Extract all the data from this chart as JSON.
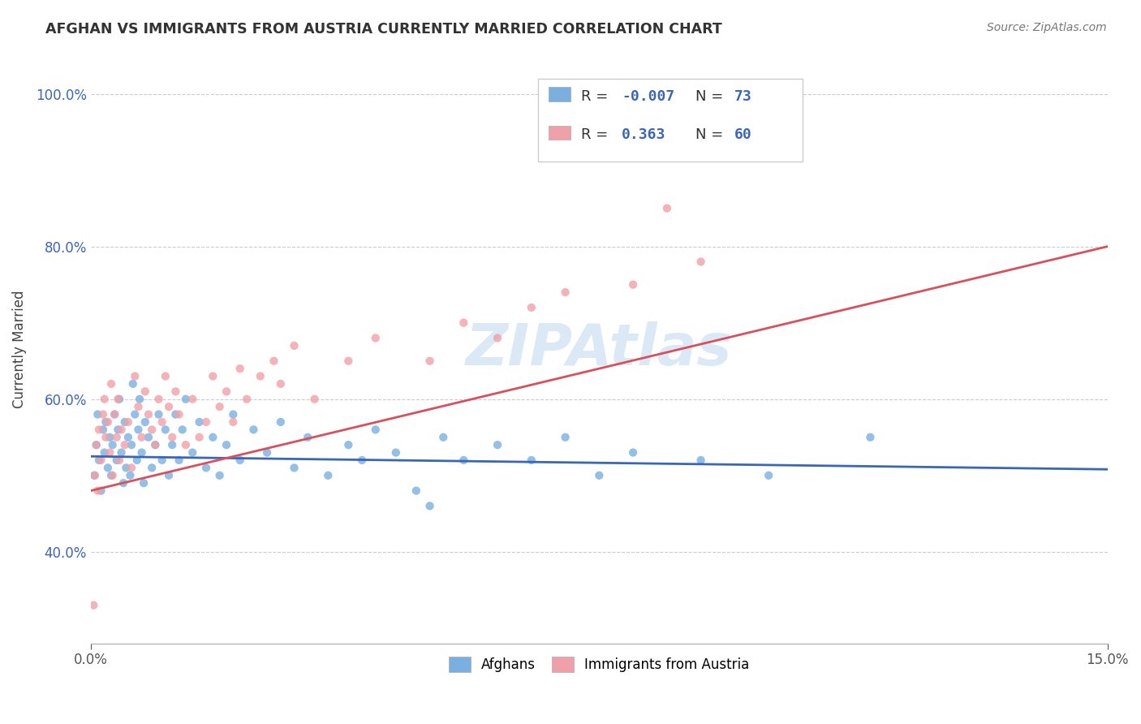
{
  "title": "AFGHAN VS IMMIGRANTS FROM AUSTRIA CURRENTLY MARRIED CORRELATION CHART",
  "source": "Source: ZipAtlas.com",
  "ylabel": "Currently Married",
  "xlim": [
    0.0,
    15.0
  ],
  "ylim": [
    28.0,
    105.0
  ],
  "yticks": [
    40.0,
    60.0,
    80.0,
    100.0
  ],
  "ytick_labels": [
    "40.0%",
    "60.0%",
    "80.0%",
    "100.0%"
  ],
  "xticks": [
    0.0,
    15.0
  ],
  "xtick_labels": [
    "0.0%",
    "15.0%"
  ],
  "background_color": "#ffffff",
  "grid_color": "#cccccc",
  "blue_color": "#7ab0e0",
  "pink_color": "#f0a0a8",
  "blue_line_color": "#3a66b8",
  "pink_line_color": "#d94f5c",
  "dot_alpha": 0.8,
  "dot_size": 55,
  "blue_scatter_x": [
    0.05,
    0.08,
    0.1,
    0.12,
    0.15,
    0.18,
    0.2,
    0.22,
    0.25,
    0.28,
    0.3,
    0.32,
    0.35,
    0.38,
    0.4,
    0.42,
    0.45,
    0.48,
    0.5,
    0.52,
    0.55,
    0.58,
    0.6,
    0.62,
    0.65,
    0.68,
    0.7,
    0.72,
    0.75,
    0.78,
    0.8,
    0.85,
    0.9,
    0.95,
    1.0,
    1.05,
    1.1,
    1.15,
    1.2,
    1.25,
    1.3,
    1.35,
    1.4,
    1.5,
    1.6,
    1.7,
    1.8,
    1.9,
    2.0,
    2.1,
    2.2,
    2.4,
    2.6,
    2.8,
    3.0,
    3.2,
    3.5,
    3.8,
    4.0,
    4.2,
    4.5,
    5.0,
    5.2,
    5.5,
    6.0,
    6.5,
    7.0,
    7.5,
    8.0,
    9.0,
    10.0,
    11.5,
    4.8
  ],
  "blue_scatter_y": [
    50,
    54,
    58,
    52,
    48,
    56,
    53,
    57,
    51,
    55,
    50,
    54,
    58,
    52,
    56,
    60,
    53,
    49,
    57,
    51,
    55,
    50,
    54,
    62,
    58,
    52,
    56,
    60,
    53,
    49,
    57,
    55,
    51,
    54,
    58,
    52,
    56,
    50,
    54,
    58,
    52,
    56,
    60,
    53,
    57,
    51,
    55,
    50,
    54,
    58,
    52,
    56,
    53,
    57,
    51,
    55,
    50,
    54,
    52,
    56,
    53,
    46,
    55,
    52,
    54,
    52,
    55,
    50,
    53,
    52,
    50,
    55,
    48
  ],
  "pink_scatter_x": [
    0.04,
    0.06,
    0.08,
    0.1,
    0.12,
    0.15,
    0.18,
    0.2,
    0.22,
    0.25,
    0.28,
    0.3,
    0.32,
    0.35,
    0.38,
    0.4,
    0.42,
    0.45,
    0.5,
    0.55,
    0.6,
    0.65,
    0.7,
    0.75,
    0.8,
    0.85,
    0.9,
    0.95,
    1.0,
    1.05,
    1.1,
    1.15,
    1.2,
    1.25,
    1.3,
    1.4,
    1.5,
    1.6,
    1.7,
    1.8,
    1.9,
    2.0,
    2.1,
    2.2,
    2.3,
    2.5,
    2.7,
    2.8,
    3.0,
    3.3,
    3.8,
    4.2,
    5.0,
    5.5,
    6.0,
    6.5,
    7.0,
    8.0,
    8.5,
    9.0
  ],
  "pink_scatter_y": [
    33,
    50,
    54,
    48,
    56,
    52,
    58,
    60,
    55,
    57,
    53,
    62,
    50,
    58,
    55,
    60,
    52,
    56,
    54,
    57,
    51,
    63,
    59,
    55,
    61,
    58,
    56,
    54,
    60,
    57,
    63,
    59,
    55,
    61,
    58,
    54,
    60,
    55,
    57,
    63,
    59,
    61,
    57,
    64,
    60,
    63,
    65,
    62,
    67,
    60,
    65,
    68,
    65,
    70,
    68,
    72,
    74,
    75,
    85,
    78
  ],
  "blue_trend_x": [
    0.0,
    15.0
  ],
  "blue_trend_y": [
    52.5,
    50.8
  ],
  "pink_trend_x": [
    0.0,
    15.0
  ],
  "pink_trend_y": [
    48.0,
    80.0
  ],
  "legend1_r": "-0.007",
  "legend1_n": "73",
  "legend2_r": "0.363",
  "legend2_n": "60",
  "value_color": "#3a66b8",
  "label_color": "#333333",
  "watermark_text": "ZIPAtlas",
  "watermark_color": "#b8d4f0",
  "bottom_legend_labels": [
    "Afghans",
    "Immigrants from Austria"
  ]
}
